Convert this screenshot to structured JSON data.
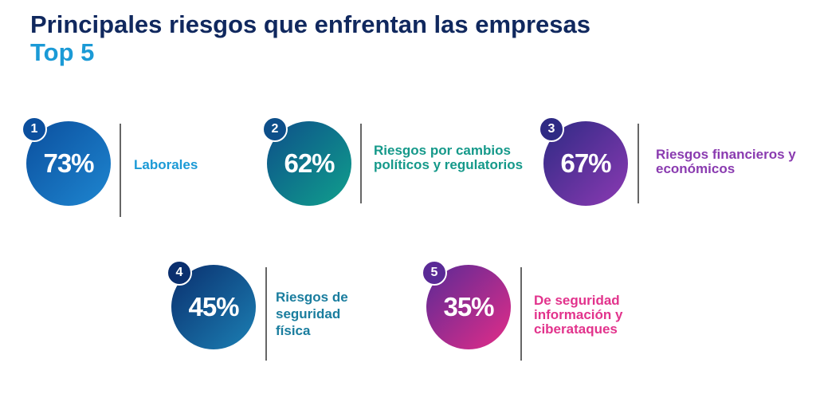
{
  "header": {
    "title": "Principales riesgos que enfrentan las empresas",
    "subtitle": "Top 5"
  },
  "risks": [
    {
      "rank": "1",
      "percent": "73%",
      "label": "Laborales",
      "color": "#1b9ad6",
      "gradient": [
        "#0b4f9e",
        "#1e86d0"
      ]
    },
    {
      "rank": "2",
      "percent": "62%",
      "label": "Riesgos por cambios políticos y regulatorios",
      "color": "#15998a",
      "gradient": [
        "#0d4f8a",
        "#10a08c"
      ]
    },
    {
      "rank": "3",
      "percent": "67%",
      "label": "Riesgos financieros y económicos",
      "color": "#8a3bb0",
      "gradient": [
        "#2e2a84",
        "#8c3ab3"
      ]
    },
    {
      "rank": "4",
      "percent": "45%",
      "label": "Riesgos de seguridad física",
      "color": "#1a7d9e",
      "gradient": [
        "#0a2f6e",
        "#1c80b4"
      ]
    },
    {
      "rank": "5",
      "percent": "35%",
      "label": "De seguridad información y ciberataques",
      "color": "#e2338c",
      "gradient": [
        "#5a2a96",
        "#e42d88"
      ]
    }
  ]
}
